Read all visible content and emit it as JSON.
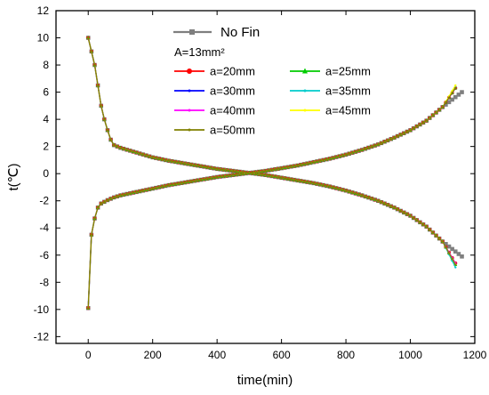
{
  "chart_data": {
    "type": "line",
    "title": "",
    "xlabel": "time(min)",
    "ylabel": "t(℃)",
    "xlim": [
      -100,
      1200
    ],
    "ylim": [
      -12.5,
      12
    ],
    "xticks": [
      0,
      200,
      400,
      600,
      800,
      1000,
      1200
    ],
    "yticks": [
      -12,
      -10,
      -8,
      -6,
      -4,
      -2,
      0,
      2,
      4,
      6,
      8,
      10,
      12
    ],
    "legend_position": "top-center",
    "legend_header": "A=13mm²",
    "curves": [
      {
        "role": "top",
        "x": [
          0,
          10,
          20,
          30,
          40,
          50,
          60,
          70,
          80,
          100,
          150,
          200,
          250,
          300,
          350,
          400,
          450,
          500,
          550,
          600,
          650,
          700,
          750,
          800,
          850,
          900,
          950,
          1000,
          1050,
          1100,
          1140
        ],
        "y": [
          10,
          9,
          8,
          6.5,
          5,
          4,
          3.2,
          2.5,
          2.1,
          1.9,
          1.55,
          1.2,
          0.95,
          0.75,
          0.55,
          0.35,
          0.2,
          0.05,
          -0.1,
          -0.3,
          -0.5,
          -0.7,
          -0.95,
          -1.25,
          -1.6,
          -2.0,
          -2.5,
          -3.1,
          -3.9,
          -5.0,
          -6.6
        ]
      },
      {
        "role": "bottom",
        "x": [
          0,
          5,
          10,
          20,
          30,
          40,
          60,
          80,
          100,
          150,
          200,
          250,
          300,
          350,
          400,
          450,
          500,
          550,
          600,
          650,
          700,
          750,
          800,
          850,
          900,
          950,
          1000,
          1050,
          1100,
          1140
        ],
        "y": [
          -9.9,
          -5.5,
          -4.5,
          -3.3,
          -2.5,
          -2.2,
          -1.95,
          -1.75,
          -1.6,
          -1.35,
          -1.1,
          -0.85,
          -0.65,
          -0.45,
          -0.25,
          -0.1,
          0.05,
          0.2,
          0.4,
          0.6,
          0.85,
          1.1,
          1.4,
          1.75,
          2.15,
          2.65,
          3.2,
          3.9,
          4.9,
          6.3
        ]
      }
    ],
    "series": [
      {
        "name": "No Fin",
        "color": "#7f7f7f",
        "marker": "square",
        "endX": 1160,
        "topEnd": -6.1,
        "bottomEnd": 6.0
      },
      {
        "name": "a=20mm",
        "color": "#ff0000",
        "marker": "circle",
        "endX": 1140,
        "topEnd": -6.6,
        "bottomEnd": 6.3
      },
      {
        "name": "a=25mm",
        "color": "#00cc00",
        "marker": "triangle",
        "endX": 1140,
        "topEnd": -6.7,
        "bottomEnd": 6.3
      },
      {
        "name": "a=30mm",
        "color": "#0000ff",
        "marker": "dot",
        "endX": 1140,
        "topEnd": -6.6,
        "bottomEnd": 6.3
      },
      {
        "name": "a=35mm",
        "color": "#00cccc",
        "marker": "dot",
        "endX": 1140,
        "topEnd": -6.9,
        "bottomEnd": 6.4
      },
      {
        "name": "a=40mm",
        "color": "#ff00ff",
        "marker": "dot",
        "endX": 1140,
        "topEnd": -6.6,
        "bottomEnd": 6.3
      },
      {
        "name": "a=45mm",
        "color": "#ffff00",
        "marker": "dot",
        "endX": 1140,
        "topEnd": -6.7,
        "bottomEnd": 6.5
      },
      {
        "name": "a=50mm",
        "color": "#808000",
        "marker": "dot",
        "endX": 1140,
        "topEnd": -6.7,
        "bottomEnd": 6.3
      }
    ]
  }
}
